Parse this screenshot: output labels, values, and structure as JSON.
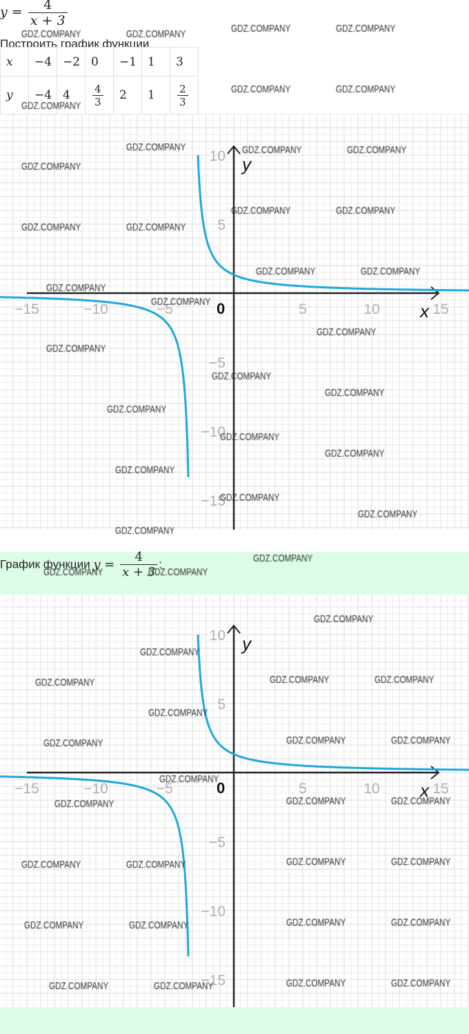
{
  "formula": {
    "lhs": "y =",
    "numerator": "4",
    "denominator": "x + 3"
  },
  "task_heading": "Построить график функции",
  "table": {
    "rows": [
      {
        "label": "x",
        "cells": [
          "−4",
          "−2",
          "0",
          "−1",
          "1",
          "3"
        ]
      },
      {
        "label": "y",
        "cells": [
          "−4",
          "4",
          {
            "num": "4",
            "den": "3"
          },
          "2",
          "1",
          {
            "num": "2",
            "den": "3"
          }
        ]
      }
    ]
  },
  "answer": {
    "caption": "График функции",
    "lhs": "y =",
    "numerator": "4",
    "denominator": "x + 3",
    "suffix": ":"
  },
  "chart_data": [
    {
      "type": "line",
      "function": "y = 4/(x+3)",
      "asymptote_x": -3,
      "xlabel": "x",
      "ylabel": "y",
      "origin_label": "0",
      "x_ticks": [
        -15,
        -10,
        -5,
        5,
        10,
        15
      ],
      "y_ticks": [
        10,
        5,
        -5,
        -10,
        -15
      ],
      "xlim": [
        -17,
        17
      ],
      "ylim": [
        -17,
        12
      ],
      "grid": true,
      "curve_color": "#1ea7e1"
    },
    {
      "type": "line",
      "function": "y = 4/(x+3)",
      "asymptote_x": -3,
      "xlabel": "x",
      "ylabel": "y",
      "origin_label": "0",
      "x_ticks": [
        -15,
        -10,
        -5,
        5,
        10,
        15
      ],
      "y_ticks": [
        10,
        5,
        -5,
        -10,
        -15
      ],
      "xlim": [
        -17,
        17
      ],
      "ylim": [
        -17,
        12
      ],
      "grid": true,
      "curve_color": "#1ea7e1"
    }
  ],
  "watermark": "GDZ.COMPANY",
  "colors": {
    "answer_background": "#dcfce7",
    "curve": "#1ea7e1",
    "axis": "#222222",
    "tick_label": "#b0b0b0"
  }
}
